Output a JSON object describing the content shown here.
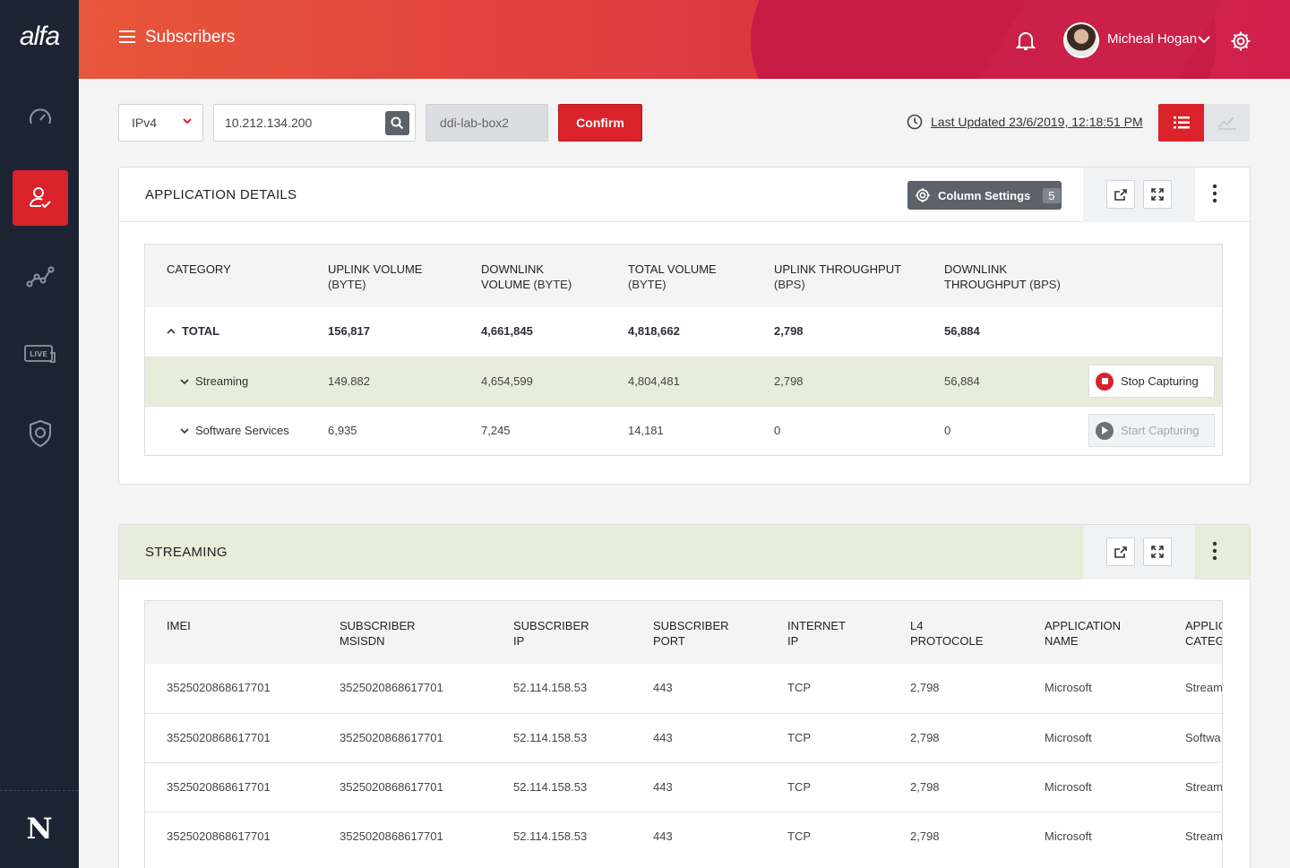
{
  "brand": {
    "logo": "alfa",
    "footer_logo": "N"
  },
  "sidebar": {
    "items": [
      {
        "name": "dashboard",
        "icon": "speedometer-icon"
      },
      {
        "name": "subscribers",
        "icon": "user-check-icon",
        "active": true
      },
      {
        "name": "analytics",
        "icon": "line-graph-icon"
      },
      {
        "name": "live",
        "icon": "live-monitor-icon",
        "badge": "LIVE"
      },
      {
        "name": "security",
        "icon": "shield-icon"
      }
    ]
  },
  "header": {
    "title": "Subscribers",
    "user_name": "Micheal Hogan"
  },
  "toolbar": {
    "ip_version": "IPv4",
    "ip_address": "10.212.134.200",
    "host": "ddi-lab-box2",
    "confirm_label": "Confirm",
    "last_updated": "Last Updated 23/6/2019, 12:18:51 PM"
  },
  "application_details": {
    "title": "APPLICATION DETAILS",
    "column_settings_label": "Column Settings",
    "column_settings_count": "5",
    "columns": [
      {
        "label": "CATEGORY",
        "unit": ""
      },
      {
        "label": "UPLINK VOLUME",
        "unit": "(BYTE)"
      },
      {
        "label": "DOWNLINK VOLUME",
        "unit": "(BYTE)"
      },
      {
        "label": "TOTAL VOLUME",
        "unit": "(BYTE)"
      },
      {
        "label": "UPLINK THROUGHPUT",
        "unit": "(BPS)"
      },
      {
        "label": "DOWNLINK THROUGHPUT",
        "unit": "(BPS)"
      }
    ],
    "rows": [
      {
        "category": "TOTAL",
        "uplink": "156,817",
        "downlink": "4,661,845",
        "total": "4,818,662",
        "up_tp": "2,798",
        "down_tp": "56,884"
      },
      {
        "category": "Streaming",
        "uplink": "149.882",
        "downlink": "4,654,599",
        "total": "4,804,481",
        "up_tp": "2,798",
        "down_tp": "56,884",
        "action": "Stop Capturing"
      },
      {
        "category": "Software Services",
        "uplink": "6,935",
        "downlink": "7,245",
        "total": "14,181",
        "up_tp": "0",
        "down_tp": "0",
        "action": "Start Capturing"
      }
    ]
  },
  "streaming": {
    "title": "STREAMING",
    "columns": [
      "IMEI",
      "SUBSCRIBER MSISDN",
      "SUBSCRIBER IP",
      "SUBSCRIBER PORT",
      "INTERNET IP",
      "L4 PROTOCOLE",
      "APPLICATION NAME",
      "APPLIC CATEG"
    ],
    "rows": [
      {
        "imei": "3525020868617701",
        "msisdn": "3525020868617701",
        "ip": "52.114.158.53",
        "port": "443",
        "inet": "TCP",
        "l4": "2,798",
        "app": "Microsoft",
        "cat": "Streami"
      },
      {
        "imei": "3525020868617701",
        "msisdn": "3525020868617701",
        "ip": "52.114.158.53",
        "port": "443",
        "inet": "TCP",
        "l4": "2,798",
        "app": "Microsoft",
        "cat": "Softwa"
      },
      {
        "imei": "3525020868617701",
        "msisdn": "3525020868617701",
        "ip": "52.114.158.53",
        "port": "443",
        "inet": "TCP",
        "l4": "2,798",
        "app": "Microsoft",
        "cat": "Streami"
      },
      {
        "imei": "3525020868617701",
        "msisdn": "3525020868617701",
        "ip": "52.114.158.53",
        "port": "443",
        "inet": "TCP",
        "l4": "2,798",
        "app": "Microsoft",
        "cat": "Streami"
      }
    ]
  },
  "colors": {
    "accent": "#d9222a",
    "sidebar": "#1c2433",
    "highlight": "#e8ecda"
  }
}
